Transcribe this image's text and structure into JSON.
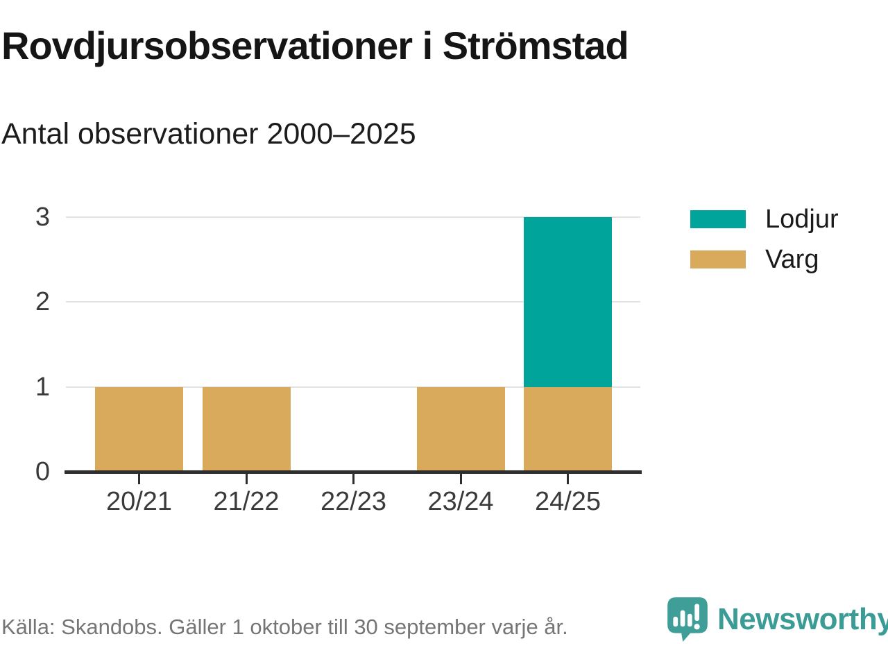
{
  "source_note": "Källa: Skandobs. Gäller 1 oktober till 30 september varje år.",
  "brand": {
    "wordmark": "Newsworthy",
    "icon": "speech-bubble-bar-chart-icon",
    "wordmark_color": "#3b9c95",
    "icon_color": "#3f9e98"
  },
  "colors": {
    "lodjur": "#00a49a",
    "varg": "#d9aa5c",
    "axis": "#2e2e2e",
    "gridline": "#e2e2e2",
    "axis_label": "#3a3a3a",
    "title": "#151515",
    "source_text": "#757575",
    "background": "#ffffff"
  },
  "chart_data": {
    "type": "bar",
    "stacked": true,
    "title": "Rovdjursobservationer i Strömstad",
    "subtitle": "Antal observationer 2000–2025",
    "categories": [
      "20/21",
      "21/22",
      "22/23",
      "23/24",
      "24/25"
    ],
    "series": [
      {
        "name": "Lodjur",
        "color": "#00a49a",
        "values": [
          0,
          0,
          0,
          0,
          2
        ]
      },
      {
        "name": "Varg",
        "color": "#d9aa5c",
        "values": [
          1,
          1,
          0,
          1,
          1
        ]
      }
    ],
    "totals": [
      1,
      1,
      0,
      1,
      3
    ],
    "xlabel": "",
    "ylabel": "",
    "ylim": [
      0,
      3
    ],
    "yticks": [
      0,
      1,
      2,
      3
    ],
    "grid": true,
    "legend_position": "right"
  }
}
